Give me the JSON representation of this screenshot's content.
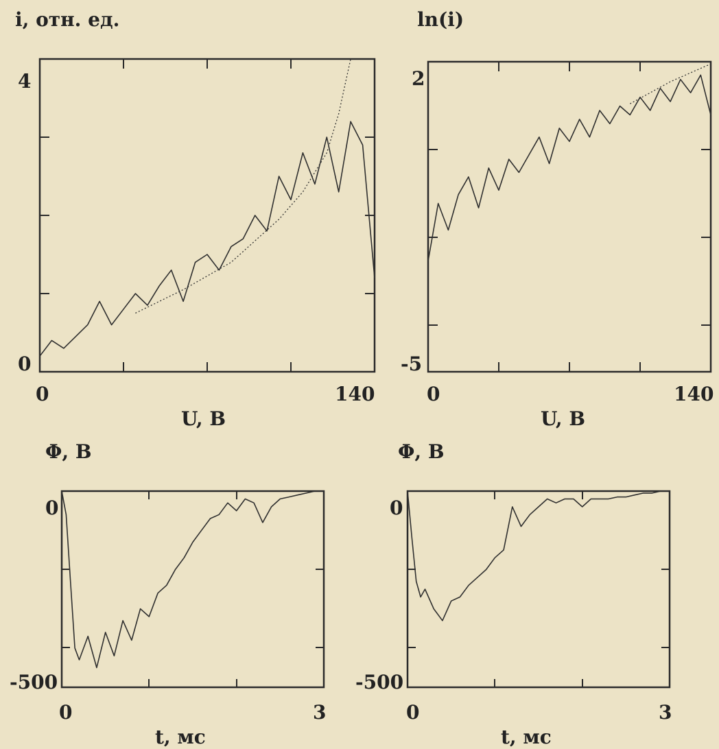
{
  "chart_data": [
    {
      "id": "a",
      "type": "line",
      "title": "",
      "ylabel": "i, отн. ед.",
      "xlabel": "U, В",
      "xlim": [
        0,
        140
      ],
      "ylim": [
        0,
        4
      ],
      "xticklabels": [
        "0",
        "140"
      ],
      "yticklabels": [
        "0",
        "4"
      ],
      "grid": false,
      "series": [
        {
          "style": "solid",
          "x": [
            0,
            5,
            10,
            15,
            20,
            25,
            30,
            35,
            40,
            45,
            50,
            55,
            60,
            65,
            70,
            75,
            80,
            85,
            90,
            95,
            100,
            105,
            110,
            115,
            120,
            125,
            130,
            135,
            140
          ],
          "y": [
            0.2,
            0.4,
            0.3,
            0.45,
            0.6,
            0.9,
            0.6,
            0.8,
            1.0,
            0.85,
            1.1,
            1.3,
            0.9,
            1.4,
            1.5,
            1.3,
            1.6,
            1.7,
            2.0,
            1.8,
            2.5,
            2.2,
            2.8,
            2.4,
            3.0,
            2.3,
            3.2,
            2.9,
            1.2
          ]
        },
        {
          "style": "dotted",
          "x": [
            40,
            60,
            80,
            100,
            110,
            120,
            125,
            130
          ],
          "y": [
            0.75,
            1.05,
            1.4,
            1.95,
            2.3,
            2.8,
            3.3,
            4.0
          ]
        }
      ]
    },
    {
      "id": "b",
      "type": "line",
      "title": "",
      "ylabel": "ln(i)",
      "xlabel": "U, В",
      "xlim": [
        0,
        140
      ],
      "ylim": [
        -5,
        2
      ],
      "xticklabels": [
        "0",
        "140"
      ],
      "yticklabels": [
        "-5",
        "2"
      ],
      "grid": false,
      "series": [
        {
          "style": "solid",
          "x": [
            0,
            5,
            10,
            15,
            20,
            25,
            30,
            35,
            40,
            45,
            50,
            55,
            60,
            65,
            70,
            75,
            80,
            85,
            90,
            95,
            100,
            105,
            110,
            115,
            120,
            125,
            130,
            135,
            140
          ],
          "y": [
            -2.5,
            -1.2,
            -1.8,
            -1.0,
            -0.6,
            -1.3,
            -0.4,
            -0.9,
            -0.2,
            -0.5,
            -0.1,
            0.3,
            -0.3,
            0.5,
            0.2,
            0.7,
            0.3,
            0.9,
            0.6,
            1.0,
            0.8,
            1.2,
            0.9,
            1.4,
            1.1,
            1.6,
            1.3,
            1.7,
            0.8
          ]
        },
        {
          "style": "dotted",
          "x": [
            100,
            110,
            120,
            130,
            140
          ],
          "y": [
            1.05,
            1.3,
            1.55,
            1.75,
            1.95
          ]
        }
      ]
    },
    {
      "id": "c",
      "type": "line",
      "title": "",
      "ylabel": "Φ, В",
      "xlabel": "t, мс",
      "xlim": [
        0,
        3
      ],
      "ylim": [
        -500,
        0
      ],
      "xticklabels": [
        "0",
        "3"
      ],
      "yticklabels": [
        "0",
        "-500"
      ],
      "grid": false,
      "series": [
        {
          "style": "solid",
          "x": [
            0,
            0.05,
            0.1,
            0.15,
            0.2,
            0.3,
            0.4,
            0.5,
            0.6,
            0.7,
            0.8,
            0.9,
            1.0,
            1.1,
            1.2,
            1.3,
            1.4,
            1.5,
            1.6,
            1.7,
            1.8,
            1.9,
            2.0,
            2.1,
            2.2,
            2.3,
            2.4,
            2.5,
            2.6,
            2.7,
            2.8,
            2.9,
            3.0
          ],
          "y": [
            0,
            -60,
            -230,
            -400,
            -430,
            -370,
            -450,
            -360,
            -420,
            -330,
            -380,
            -300,
            -320,
            -260,
            -240,
            -200,
            -170,
            -130,
            -100,
            -70,
            -60,
            -30,
            -50,
            -20,
            -30,
            -80,
            -40,
            -20,
            -15,
            -10,
            -5,
            0,
            0
          ]
        }
      ]
    },
    {
      "id": "d",
      "type": "line",
      "title": "",
      "ylabel": "Φ, В",
      "xlabel": "t, мс",
      "xlim": [
        0,
        3
      ],
      "ylim": [
        -500,
        0
      ],
      "xticklabels": [
        "0",
        "3"
      ],
      "yticklabels": [
        "0",
        "-500"
      ],
      "grid": false,
      "series": [
        {
          "style": "solid",
          "x": [
            0,
            0.05,
            0.1,
            0.15,
            0.2,
            0.3,
            0.4,
            0.5,
            0.6,
            0.7,
            0.8,
            0.9,
            1.0,
            1.1,
            1.2,
            1.3,
            1.4,
            1.5,
            1.6,
            1.7,
            1.8,
            1.9,
            2.0,
            2.1,
            2.2,
            2.3,
            2.4,
            2.5,
            2.6,
            2.7,
            2.8,
            2.9,
            3.0
          ],
          "y": [
            0,
            -120,
            -230,
            -270,
            -250,
            -300,
            -330,
            -280,
            -270,
            -240,
            -220,
            -200,
            -170,
            -150,
            -40,
            -90,
            -60,
            -40,
            -20,
            -30,
            -20,
            -20,
            -40,
            -20,
            -20,
            -20,
            -15,
            -15,
            -10,
            -5,
            -5,
            0,
            0
          ]
        }
      ]
    }
  ]
}
